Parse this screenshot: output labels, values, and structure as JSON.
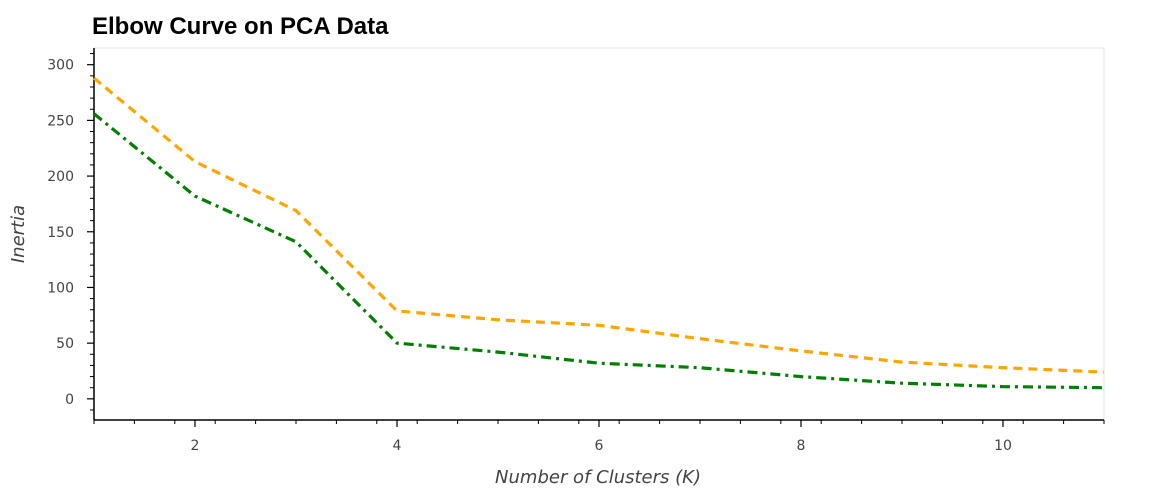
{
  "chart_data": {
    "type": "line",
    "title": "Elbow Curve on PCA Data",
    "xlabel": "Number of Clusters (K)",
    "ylabel": "Inertia",
    "xlim": [
      1,
      11
    ],
    "ylim": [
      -19,
      315
    ],
    "x_ticks": [
      2,
      4,
      6,
      8,
      10
    ],
    "y_ticks": [
      0,
      50,
      100,
      150,
      200,
      250,
      300
    ],
    "grid": false,
    "legend": "none",
    "series": [
      {
        "color": "#FFA500",
        "dash": "dashed",
        "x": [
          1,
          2,
          3,
          4,
          5,
          6,
          7,
          8,
          9,
          10,
          11
        ],
        "y": [
          288,
          213,
          169,
          79,
          71,
          66,
          54,
          43,
          33,
          28,
          24
        ]
      },
      {
        "color": "#008000",
        "dash": "dashdot",
        "x": [
          1,
          2,
          3,
          4,
          5,
          6,
          7,
          8,
          9,
          10,
          11
        ],
        "y": [
          256,
          182,
          141,
          50,
          42,
          32,
          28,
          20,
          14,
          11,
          10
        ]
      }
    ]
  }
}
